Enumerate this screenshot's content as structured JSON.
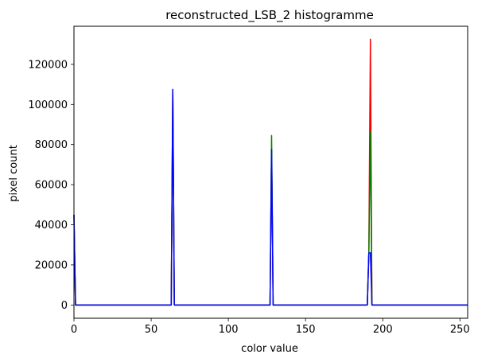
{
  "chart_data": {
    "type": "line",
    "title": "reconstructed_LSB_2 histogramme",
    "xlabel": "color value",
    "ylabel": "pixel count",
    "xlim": [
      0,
      255
    ],
    "ylim": [
      -6600,
      139000
    ],
    "xticks": [
      0,
      50,
      100,
      150,
      200,
      250
    ],
    "yticks": [
      0,
      20000,
      40000,
      60000,
      80000,
      100000,
      120000
    ],
    "grid": false,
    "legend": "none",
    "series": [
      {
        "color": "#ff0000",
        "points": [
          [
            0,
            45000
          ],
          [
            1,
            0
          ],
          [
            63,
            0
          ],
          [
            64,
            106000
          ],
          [
            65,
            0
          ],
          [
            127,
            0
          ],
          [
            128,
            78000
          ],
          [
            129,
            0
          ],
          [
            190,
            0
          ],
          [
            191,
            26000
          ],
          [
            192,
            132500
          ],
          [
            193,
            0
          ],
          [
            255,
            0
          ]
        ]
      },
      {
        "color": "#008000",
        "points": [
          [
            0,
            45000
          ],
          [
            1,
            0
          ],
          [
            63,
            0
          ],
          [
            64,
            106000
          ],
          [
            65,
            0
          ],
          [
            127,
            0
          ],
          [
            128,
            84500
          ],
          [
            129,
            0
          ],
          [
            190,
            0
          ],
          [
            191,
            26000
          ],
          [
            192,
            86500
          ],
          [
            193,
            0
          ],
          [
            255,
            0
          ]
        ]
      },
      {
        "color": "#0000ff",
        "points": [
          [
            0,
            45000
          ],
          [
            1,
            0
          ],
          [
            63,
            0
          ],
          [
            64,
            107500
          ],
          [
            65,
            0
          ],
          [
            127,
            0
          ],
          [
            128,
            77500
          ],
          [
            129,
            0
          ],
          [
            190,
            0
          ],
          [
            191,
            26000
          ],
          [
            192,
            26000
          ],
          [
            193,
            0
          ],
          [
            255,
            0
          ]
        ]
      }
    ]
  }
}
